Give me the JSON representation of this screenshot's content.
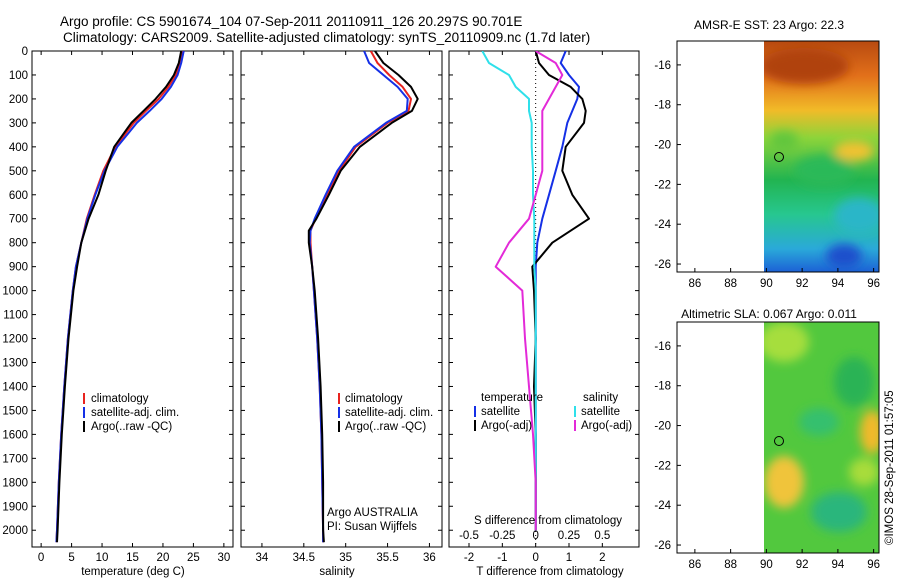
{
  "header": {
    "line1": "Argo profile: CS 5901674_104 07-Sep-2011 20110911_126 20.297S 90.701E",
    "line2": "Climatology: CARS2009. Satellite-adjusted climatology: synTS_20110909.nc (1.7d later)"
  },
  "colors": {
    "climatology": "#e8231f",
    "satellite": "#1530e6",
    "argo": "#000000",
    "salinity_sat": "#2fe0ea",
    "salinity_argo": "#e32ad8"
  },
  "chart_data": [
    {
      "type": "line",
      "title": "",
      "xlabel": "temperature (deg C)",
      "ylabel": "",
      "xlim": [
        -1.5,
        31.5
      ],
      "ylim": [
        2070,
        0
      ],
      "xticks": [
        "0",
        "5",
        "10",
        "15",
        "20",
        "25",
        "30"
      ],
      "yticks": [
        "0",
        "100",
        "200",
        "300",
        "400",
        "500",
        "600",
        "700",
        "800",
        "900",
        "1000",
        "1100",
        "1200",
        "1300",
        "1400",
        "1500",
        "1600",
        "1700",
        "1800",
        "1900",
        "2000"
      ],
      "depth": [
        0,
        50,
        100,
        150,
        200,
        250,
        300,
        400,
        500,
        600,
        700,
        800,
        900,
        1000,
        1200,
        1400,
        1600,
        1800,
        2000,
        2050
      ],
      "series": [
        {
          "name": "climatology",
          "key": "climatology",
          "values": [
            23.2,
            22.9,
            22.1,
            20.9,
            19.3,
            17.2,
            15.2,
            12.2,
            10.2,
            8.8,
            7.5,
            6.6,
            5.7,
            5.2,
            4.4,
            3.8,
            3.3,
            2.9,
            2.6,
            2.5
          ]
        },
        {
          "name": "satellite-adj. clim.",
          "key": "satellite",
          "values": [
            23.4,
            23.0,
            22.4,
            21.3,
            19.8,
            17.8,
            15.7,
            12.5,
            10.4,
            8.9,
            7.6,
            6.6,
            5.7,
            5.2,
            4.4,
            3.8,
            3.3,
            2.9,
            2.6,
            2.5
          ]
        },
        {
          "name": "Argo(..raw -QC)",
          "key": "argo",
          "values": [
            23.0,
            22.6,
            21.8,
            20.5,
            18.8,
            16.8,
            14.8,
            12.0,
            10.6,
            9.4,
            7.8,
            6.6,
            5.9,
            5.3,
            4.5,
            3.9,
            3.4,
            3.0,
            2.7,
            2.6
          ]
        }
      ],
      "legend": [
        "climatology",
        "satellite-adj. clim.",
        "Argo(..raw -QC)"
      ],
      "legend_position": "bottom-left"
    },
    {
      "type": "line",
      "xlabel": "salinity",
      "xlim": [
        33.75,
        36.15
      ],
      "ylim": [
        2070,
        0
      ],
      "xticks": [
        "34",
        "34.5",
        "35",
        "35.5",
        "36"
      ],
      "depth": [
        0,
        50,
        100,
        150,
        200,
        250,
        300,
        400,
        500,
        600,
        700,
        750,
        800,
        900,
        1000,
        1200,
        1400,
        1600,
        1800,
        2000,
        2050
      ],
      "series": [
        {
          "name": "climatology",
          "key": "climatology",
          "values": [
            35.3,
            35.38,
            35.52,
            35.68,
            35.78,
            35.75,
            35.5,
            35.12,
            34.92,
            34.78,
            34.64,
            34.58,
            34.58,
            34.6,
            34.62,
            34.66,
            34.69,
            34.71,
            34.72,
            34.73,
            34.73
          ]
        },
        {
          "name": "satellite-adj. clim.",
          "key": "satellite",
          "values": [
            35.22,
            35.28,
            35.45,
            35.62,
            35.74,
            35.73,
            35.48,
            35.1,
            34.9,
            34.76,
            34.63,
            34.58,
            34.57,
            34.6,
            34.62,
            34.66,
            34.69,
            34.71,
            34.72,
            34.73,
            34.73
          ]
        },
        {
          "name": "Argo(..raw -QC)",
          "key": "argo",
          "values": [
            35.35,
            35.45,
            35.63,
            35.78,
            35.86,
            35.79,
            35.55,
            35.17,
            34.94,
            34.8,
            34.65,
            34.56,
            34.56,
            34.6,
            34.63,
            34.67,
            34.7,
            34.72,
            34.73,
            34.73,
            34.74
          ]
        }
      ],
      "legend": [
        "climatology",
        "satellite-adj. clim.",
        "Argo(..raw -QC)"
      ],
      "annotation": [
        "Argo AUSTRALIA",
        "PI: Susan Wijffels"
      ]
    },
    {
      "type": "line",
      "xlabel": "T difference from climatology",
      "xlabel_top": "S difference from climatology",
      "xlim": [
        -2.6,
        3.1
      ],
      "ylim": [
        2070,
        0
      ],
      "xticks": [
        "-2",
        "-1",
        "0",
        "1",
        "2"
      ],
      "sticks": [
        "-0.5",
        "-0.25",
        "0",
        "0.25",
        "0.5"
      ],
      "depth": [
        0,
        50,
        100,
        150,
        200,
        250,
        300,
        400,
        500,
        600,
        700,
        800,
        900,
        1000,
        1200,
        1400,
        1600,
        1800,
        2000
      ],
      "series": [
        {
          "name": "temperature satellite",
          "key": "satellite",
          "values": [
            0.9,
            0.75,
            1.0,
            1.3,
            1.25,
            1.1,
            0.95,
            0.8,
            0.6,
            0.4,
            0.2,
            0.05,
            0.0,
            0.0,
            0.0,
            0.0,
            0.0,
            0.0,
            0.0
          ]
        },
        {
          "name": "temperature Argo(-adj)",
          "key": "argo",
          "values": [
            0.0,
            0.1,
            0.4,
            1.05,
            1.4,
            1.5,
            1.45,
            0.9,
            0.8,
            1.1,
            1.6,
            0.5,
            -0.1,
            -0.05,
            0.0,
            -0.05,
            0.0,
            0.0,
            0.0
          ]
        },
        {
          "name": "salinity satellite",
          "key": "salinity_sat",
          "values": [
            -0.4,
            -0.35,
            -0.2,
            -0.15,
            -0.05,
            -0.05,
            -0.03,
            -0.03,
            -0.02,
            -0.02,
            -0.01,
            -0.01,
            -0.01,
            0.0,
            0.0,
            0.0,
            0.0,
            0.0,
            0.0
          ]
        },
        {
          "name": "salinity Argo(-adj)",
          "key": "salinity_argo",
          "values": [
            0.0,
            0.15,
            0.2,
            0.15,
            0.1,
            0.05,
            0.05,
            0.05,
            0.05,
            0.0,
            -0.05,
            -0.2,
            -0.3,
            -0.1,
            -0.08,
            -0.05,
            -0.02,
            0.0,
            0.0
          ]
        }
      ],
      "legend": {
        "temperature": "temperature",
        "salinity": "salinity",
        "sat": "satellite",
        "argo": "Argo(-adj)"
      }
    }
  ],
  "maps": [
    {
      "title": "AMSR-E SST: 23 Argo: 22.3",
      "xticks": [
        "86",
        "88",
        "90",
        "92",
        "94",
        "96"
      ],
      "yticks": [
        "-16",
        "-18",
        "-20",
        "-22",
        "-24",
        "-26"
      ]
    },
    {
      "title": "Altimetric SLA: 0.067 Argo: 0.011",
      "xticks": [
        "86",
        "88",
        "90",
        "92",
        "94",
        "96"
      ],
      "yticks": [
        "-16",
        "-18",
        "-20",
        "-22",
        "-24",
        "-26"
      ]
    }
  ],
  "footer": {
    "stamp": "©IMOS 28-Sep-2011 01:57:05"
  }
}
